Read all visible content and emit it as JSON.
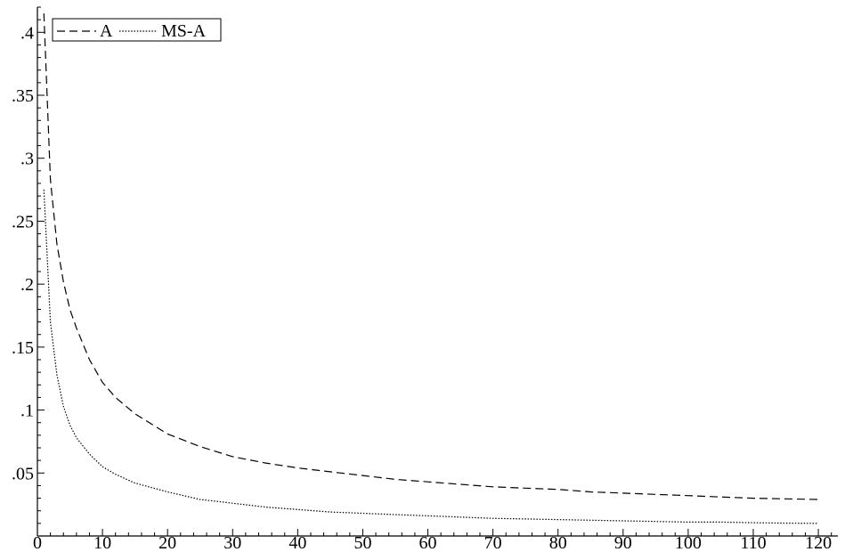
{
  "chart_data": {
    "type": "line",
    "title": "",
    "xlabel": "",
    "ylabel": "",
    "xlim": [
      0,
      123
    ],
    "ylim": [
      0,
      0.42
    ],
    "grid": false,
    "legend_position": "top-left",
    "x_ticks": [
      0,
      10,
      20,
      30,
      40,
      50,
      60,
      70,
      80,
      90,
      100,
      110,
      120
    ],
    "x_tick_labels": [
      "0",
      "10",
      "20",
      "30",
      "40",
      "50",
      "60",
      "70",
      "80",
      "90",
      "100",
      "110",
      "120"
    ],
    "y_ticks": [
      0.05,
      0.1,
      0.15,
      0.2,
      0.25,
      0.3,
      0.35,
      0.4
    ],
    "y_tick_labels": [
      ".05",
      ".1",
      ".15",
      ".2",
      ".25",
      ".3",
      ".35",
      ".4"
    ],
    "x": [
      1,
      2,
      3,
      4,
      5,
      6,
      8,
      10,
      12,
      15,
      20,
      25,
      30,
      35,
      40,
      45,
      50,
      55,
      60,
      65,
      70,
      75,
      80,
      85,
      90,
      95,
      100,
      105,
      110,
      115,
      120
    ],
    "series": [
      {
        "name": "A",
        "style": "dashed",
        "color": "#000000",
        "values": [
          0.415,
          0.283,
          0.232,
          0.202,
          0.18,
          0.165,
          0.14,
          0.122,
          0.11,
          0.097,
          0.081,
          0.071,
          0.063,
          0.058,
          0.054,
          0.051,
          0.048,
          0.045,
          0.043,
          0.041,
          0.039,
          0.038,
          0.037,
          0.035,
          0.034,
          0.033,
          0.032,
          0.031,
          0.03,
          0.0295,
          0.029
        ]
      },
      {
        "name": "MS-A",
        "style": "dotted",
        "color": "#000000",
        "values": [
          0.275,
          0.17,
          0.128,
          0.103,
          0.088,
          0.078,
          0.065,
          0.055,
          0.049,
          0.042,
          0.035,
          0.029,
          0.026,
          0.023,
          0.021,
          0.019,
          0.018,
          0.017,
          0.016,
          0.015,
          0.014,
          0.0135,
          0.013,
          0.0125,
          0.012,
          0.0115,
          0.011,
          0.011,
          0.0105,
          0.0102,
          0.01
        ]
      }
    ]
  }
}
